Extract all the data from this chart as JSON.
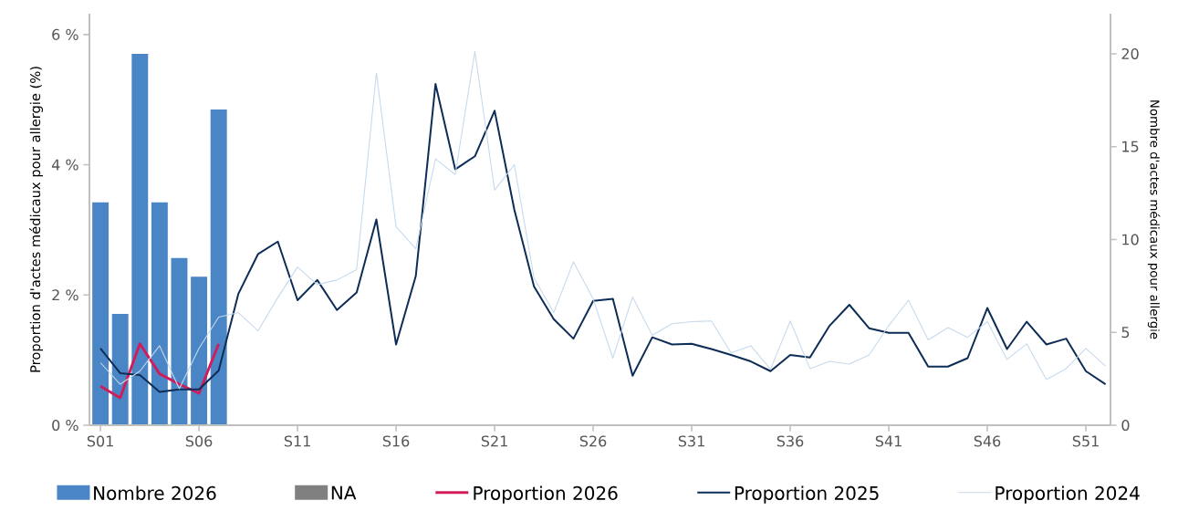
{
  "chart_data": {
    "type": "line",
    "ylabel": "Proportion d'actes médicaux pour allergie (%)",
    "y2label": "Nombre d'actes médicaux pour allergie",
    "categories": [
      "S01",
      null,
      null,
      null,
      null,
      "S06",
      null,
      null,
      null,
      null,
      "S11",
      null,
      null,
      null,
      null,
      "S16",
      null,
      null,
      null,
      null,
      "S21",
      null,
      null,
      null,
      null,
      "S26",
      null,
      null,
      null,
      null,
      "S31",
      null,
      null,
      null,
      null,
      "S36",
      null,
      null,
      null,
      null,
      "S41",
      null,
      null,
      null,
      null,
      "S46",
      null,
      null,
      null,
      null,
      "S51",
      null
    ],
    "series": [
      {
        "name": "Nombre 2026",
        "type": "bar",
        "axis": "y2",
        "color": "#4a86c5",
        "values": [
          12,
          6,
          20,
          12,
          9,
          8,
          17,
          null,
          null,
          null,
          null,
          null,
          null,
          null,
          null,
          null,
          null,
          null,
          null,
          null,
          null,
          null,
          null,
          null,
          null,
          null,
          null,
          null,
          null,
          null,
          null,
          null,
          null,
          null,
          null,
          null,
          null,
          null,
          null,
          null,
          null,
          null,
          null,
          null,
          null,
          null,
          null,
          null,
          null,
          null,
          null,
          null
        ]
      },
      {
        "name": "NA",
        "type": "bar",
        "axis": "y2",
        "color": "#808080",
        "values": [
          null,
          null,
          null,
          null,
          null,
          null,
          null,
          null,
          null,
          null,
          null,
          null,
          null,
          null,
          null,
          null,
          null,
          null,
          null,
          null,
          null,
          null,
          null,
          null,
          null,
          null,
          null,
          null,
          null,
          null,
          null,
          null,
          null,
          null,
          null,
          null,
          null,
          null,
          null,
          null,
          null,
          null,
          null,
          null,
          null,
          null,
          null,
          null,
          null,
          null,
          null,
          null
        ]
      },
      {
        "name": "Proportion 2026",
        "color": "#d01c5b",
        "values": [
          0.6,
          0.42,
          1.25,
          0.79,
          0.63,
          0.49,
          1.25,
          null,
          null,
          null,
          null,
          null,
          null,
          null,
          null,
          null,
          null,
          null,
          null,
          null,
          null,
          null,
          null,
          null,
          null,
          null,
          null,
          null,
          null,
          null,
          null,
          null,
          null,
          null,
          null,
          null,
          null,
          null,
          null,
          null,
          null,
          null,
          null,
          null,
          null,
          null,
          null,
          null,
          null,
          null,
          null,
          null
        ]
      },
      {
        "name": "Proportion 2025",
        "color": "#0d2d56",
        "values": [
          1.18,
          0.8,
          0.77,
          0.51,
          0.55,
          0.55,
          0.84,
          2.02,
          2.63,
          2.82,
          1.92,
          2.23,
          1.77,
          2.04,
          3.16,
          1.24,
          2.29,
          5.24,
          3.93,
          4.13,
          4.83,
          3.31,
          2.13,
          1.63,
          1.33,
          1.91,
          1.94,
          0.76,
          1.35,
          1.24,
          1.25,
          1.17,
          1.08,
          0.98,
          0.83,
          1.08,
          1.04,
          1.53,
          1.85,
          1.49,
          1.42,
          1.42,
          0.9,
          0.9,
          1.03,
          1.8,
          1.17,
          1.59,
          1.24,
          1.33,
          0.83,
          0.63
        ]
      },
      {
        "name": "Proportion 2024",
        "color": "#c6d9ee",
        "values": [
          0.96,
          0.63,
          0.83,
          1.22,
          0.56,
          1.18,
          1.66,
          1.73,
          1.45,
          1.96,
          2.43,
          2.16,
          2.23,
          2.39,
          5.41,
          3.05,
          2.71,
          4.09,
          3.85,
          5.74,
          3.61,
          4.0,
          2.26,
          1.73,
          2.51,
          1.94,
          1.03,
          1.97,
          1.38,
          1.56,
          1.59,
          1.6,
          1.11,
          1.22,
          0.86,
          1.6,
          0.87,
          0.98,
          0.94,
          1.08,
          1.53,
          1.92,
          1.31,
          1.5,
          1.35,
          1.59,
          1.01,
          1.25,
          0.7,
          0.87,
          1.18,
          0.91
        ]
      }
    ],
    "ylim": [
      0,
      6.32
    ],
    "yticks": [
      {
        "value": 0,
        "label": "0 %"
      },
      {
        "value": 2,
        "label": "2 %"
      },
      {
        "value": 4,
        "label": "4 %"
      },
      {
        "value": 6,
        "label": "6 %"
      }
    ],
    "y2lim": [
      0,
      22.16
    ],
    "y2ticks": [
      0,
      5,
      10,
      15,
      20
    ],
    "legend": "bottom"
  }
}
